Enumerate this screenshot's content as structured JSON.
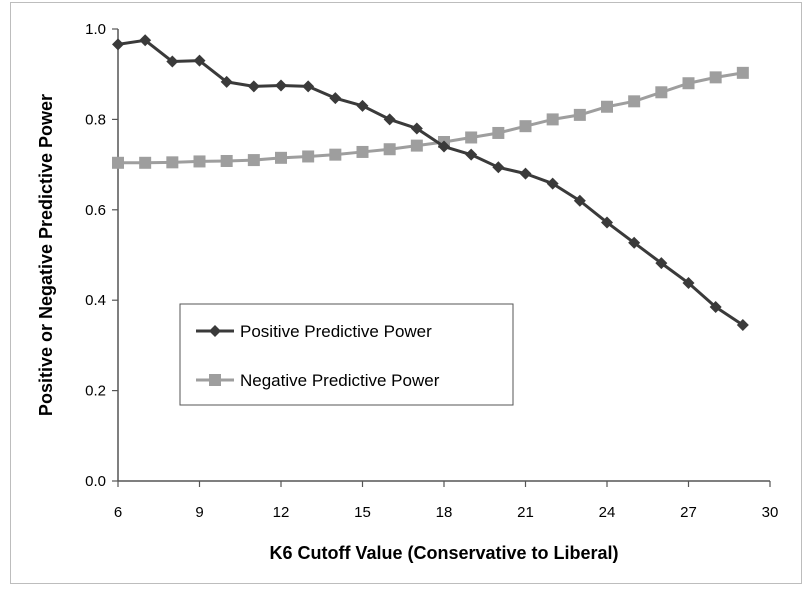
{
  "chart_data": {
    "type": "line",
    "title": "",
    "xlabel": "K6 Cutoff Value (Conservative to Liberal)",
    "ylabel": "Positive or Negative Predictive Power",
    "xlim": [
      6,
      30
    ],
    "ylim": [
      0,
      1
    ],
    "x_ticks": [
      "6",
      "9",
      "12",
      "15",
      "18",
      "21",
      "24",
      "27",
      "30"
    ],
    "y_ticks": [
      "0.0",
      "0.2",
      "0.4",
      "0.6",
      "0.8",
      "1.0"
    ],
    "grid": false,
    "legend_position": "center-left",
    "x": [
      6,
      7,
      8,
      9,
      10,
      11,
      12,
      13,
      14,
      15,
      16,
      17,
      18,
      19,
      20,
      21,
      22,
      23,
      24,
      25,
      26,
      27,
      28,
      29
    ],
    "series": [
      {
        "name": "Positive Predictive Power",
        "color": "#3a3a3a",
        "marker": "diamond",
        "values": [
          0.966,
          0.975,
          0.928,
          0.93,
          0.883,
          0.873,
          0.875,
          0.873,
          0.847,
          0.83,
          0.8,
          0.78,
          0.74,
          0.722,
          0.694,
          0.68,
          0.658,
          0.62,
          0.572,
          0.527,
          0.482,
          0.438,
          0.385,
          0.345
        ]
      },
      {
        "name": "Negative Predictive Power",
        "color": "#9e9e9e",
        "marker": "square",
        "values": [
          0.704,
          0.704,
          0.705,
          0.707,
          0.708,
          0.71,
          0.715,
          0.718,
          0.722,
          0.728,
          0.734,
          0.742,
          0.75,
          0.76,
          0.77,
          0.785,
          0.8,
          0.81,
          0.828,
          0.84,
          0.86,
          0.88,
          0.893,
          0.903
        ]
      }
    ]
  }
}
